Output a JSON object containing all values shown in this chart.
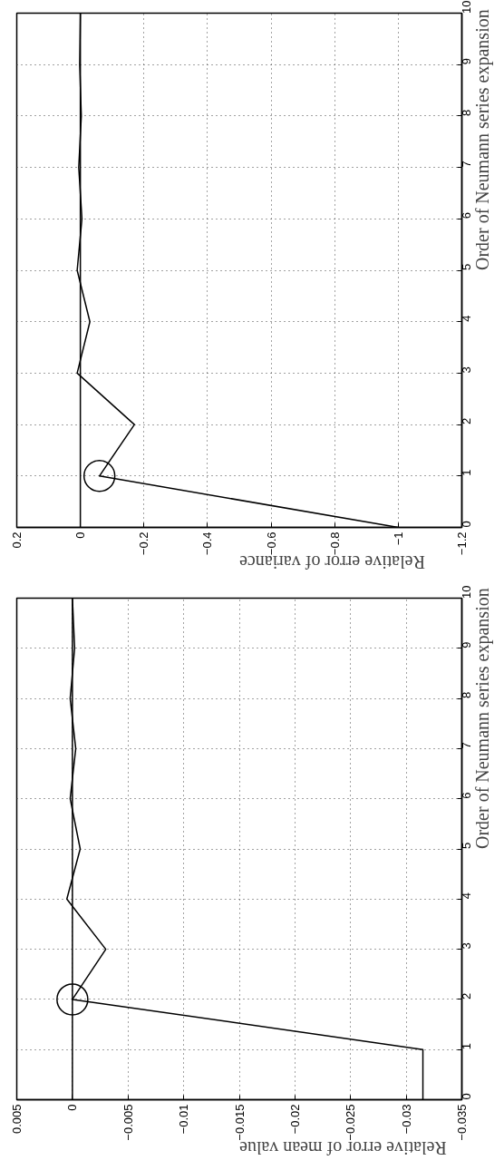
{
  "chart_data": [
    {
      "type": "line",
      "xlabel": "Relative error of variance",
      "ylabel": "Order of Neumann series expansion",
      "xlim": [
        0.2,
        -1.2
      ],
      "xticks": [
        0.2,
        0,
        -0.2,
        -0.4,
        -0.6,
        -0.8,
        -1,
        -1.2
      ],
      "ylim": [
        0,
        10
      ],
      "yticks": [
        0,
        1,
        2,
        3,
        4,
        5,
        6,
        7,
        8,
        9,
        10
      ],
      "grid": true,
      "series": [
        {
          "color": "#000000",
          "x": [
            -1,
            -0.06,
            -0.17,
            0.01,
            -0.03,
            0.01,
            -0.005,
            0.005,
            -0.003,
            0.002,
            0
          ],
          "values": [
            0,
            1,
            2,
            3,
            4,
            5,
            6,
            7,
            8,
            9,
            10
          ],
          "marker": "none"
        },
        {
          "type": "scatter",
          "color": "#000000",
          "x": [
            -0.06
          ],
          "values": [
            1
          ],
          "marker": "circle"
        }
      ],
      "ref_lines": [
        {
          "axis": "x",
          "value": 0,
          "color": "#000000"
        }
      ]
    },
    {
      "type": "line",
      "xlabel": "Relative error of mean value",
      "ylabel": "Order of Neumann series expansion",
      "xlim": [
        0.005,
        -0.035
      ],
      "xticks": [
        0.005,
        0,
        -0.005,
        -0.01,
        -0.015,
        -0.02,
        -0.025,
        -0.03,
        -0.035
      ],
      "ylim": [
        0,
        10
      ],
      "yticks": [
        0,
        1,
        2,
        3,
        4,
        5,
        6,
        7,
        8,
        9,
        10
      ],
      "grid": true,
      "series": [
        {
          "color": "#000000",
          "x": [
            -0.0315,
            -0.0315,
            0,
            -0.003,
            0.0005,
            -0.0007,
            0.0002,
            -0.0003,
            0.0002,
            -0.0002,
            0
          ],
          "values": [
            0,
            1,
            2,
            3,
            4,
            5,
            6,
            7,
            8,
            9,
            10
          ],
          "marker": "none"
        },
        {
          "type": "scatter",
          "color": "#000000",
          "x": [
            0
          ],
          "values": [
            2
          ],
          "marker": "circle"
        }
      ],
      "ref_lines": [
        {
          "axis": "x",
          "value": 0,
          "color": "#000000"
        }
      ]
    }
  ]
}
